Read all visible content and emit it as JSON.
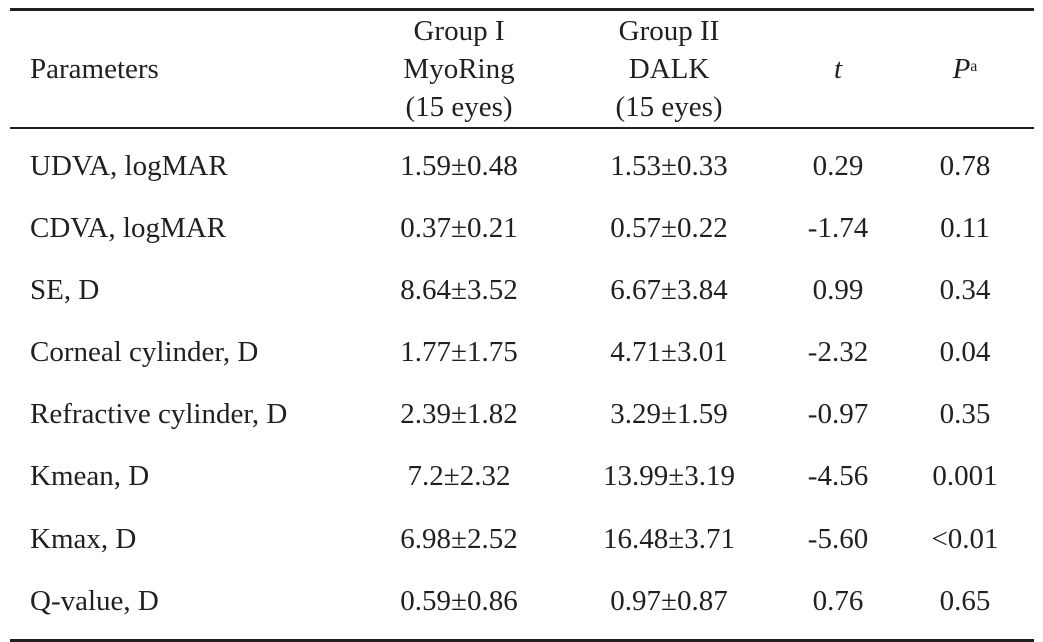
{
  "table": {
    "header": {
      "parameters": "Parameters",
      "group1": {
        "line1": "Group I",
        "line2": "MyoRing",
        "line3": "(15 eyes)"
      },
      "group2": {
        "line1": "Group II",
        "line2": "DALK",
        "line3": "(15 eyes)"
      },
      "t": "t",
      "p": "P",
      "p_sup": "a"
    },
    "rows": [
      {
        "param": "UDVA, logMAR",
        "g1": "1.59±0.48",
        "g2": "1.53±0.33",
        "t": "0.29",
        "p": "0.78"
      },
      {
        "param": "CDVA, logMAR",
        "g1": "0.37±0.21",
        "g2": "0.57±0.22",
        "t": "-1.74",
        "p": "0.11"
      },
      {
        "param": "SE, D",
        "g1": "8.64±3.52",
        "g2": "6.67±3.84",
        "t": "0.99",
        "p": "0.34"
      },
      {
        "param": "Corneal cylinder, D",
        "g1": "1.77±1.75",
        "g2": "4.71±3.01",
        "t": "-2.32",
        "p": "0.04"
      },
      {
        "param": "Refractive cylinder, D",
        "g1": "2.39±1.82",
        "g2": "3.29±1.59",
        "t": "-0.97",
        "p": "0.35"
      },
      {
        "param": "Kmean, D",
        "g1": "7.2±2.32",
        "g2": "13.99±3.19",
        "t": "-4.56",
        "p": "0.001"
      },
      {
        "param": "Kmax, D",
        "g1": "6.98±2.52",
        "g2": "16.48±3.71",
        "t": "-5.60",
        "p": "<0.01"
      },
      {
        "param": "Q-value, D",
        "g1": "0.59±0.86",
        "g2": "0.97±0.87",
        "t": "0.76",
        "p": "0.65"
      }
    ]
  }
}
